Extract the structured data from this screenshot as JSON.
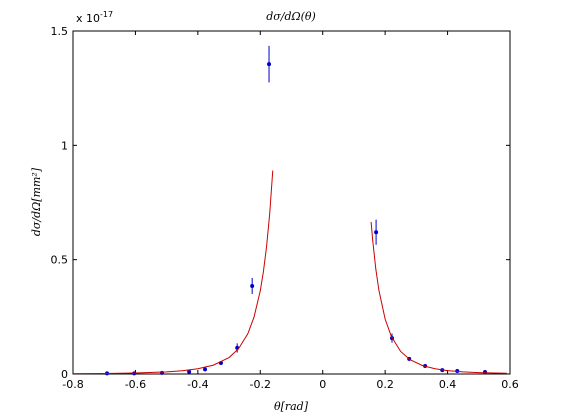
{
  "chart_data": {
    "type": "scatter",
    "title": "dσ/dΩ(θ)",
    "x_label": "θ[rad]",
    "y_label": "dσ/dΩ[mm²]",
    "multiplier": {
      "base": "x 10",
      "exponent": "-17"
    },
    "xlim": [
      -0.8,
      0.6
    ],
    "ylim": [
      0,
      1.5
    ],
    "xticks": [
      -0.8,
      -0.6,
      -0.4,
      -0.2,
      0,
      0.2,
      0.4,
      0.6
    ],
    "yticks": [
      0,
      0.5,
      1,
      1.5
    ],
    "grid": false,
    "series": [
      {
        "style": "errorbar",
        "color": "#0000cc",
        "x": [
          -0.691,
          -0.604,
          -0.515,
          -0.428,
          -0.377,
          -0.326,
          -0.274,
          -0.226,
          -0.172,
          0.171,
          0.222,
          0.277,
          0.328,
          0.383,
          0.431,
          0.52
        ],
        "values": [
          0.003,
          0.003,
          0.005,
          0.01,
          0.02,
          0.048,
          0.114,
          0.385,
          1.355,
          0.62,
          0.157,
          0.066,
          0.035,
          0.017,
          0.013,
          0.009
        ],
        "errors": [
          0.003,
          0.003,
          0.003,
          0.004,
          0.005,
          0.008,
          0.02,
          0.035,
          0.08,
          0.055,
          0.02,
          0.008,
          0.005,
          0.004,
          0.003,
          0.003
        ]
      },
      {
        "style": "line",
        "color": "#cc0000",
        "x": [
          -0.8,
          -0.7,
          -0.6,
          -0.5,
          -0.45,
          -0.4,
          -0.35,
          -0.3,
          -0.27,
          -0.24,
          -0.22,
          -0.2,
          -0.19,
          -0.18,
          -0.17,
          -0.16
        ],
        "values": [
          0.0014,
          0.0024,
          0.0045,
          0.0093,
          0.0142,
          0.0228,
          0.0389,
          0.072,
          0.11,
          0.176,
          0.249,
          0.364,
          0.448,
          0.556,
          0.698,
          0.89
        ]
      },
      {
        "style": "line",
        "color": "#cc0000",
        "x": [
          0.155,
          0.16,
          0.17,
          0.18,
          0.2,
          0.22,
          0.25,
          0.28,
          0.32,
          0.36,
          0.4,
          0.45,
          0.5,
          0.55,
          0.59
        ],
        "values": [
          0.665,
          0.586,
          0.46,
          0.366,
          0.24,
          0.164,
          0.098,
          0.0624,
          0.0366,
          0.0229,
          0.015,
          0.0094,
          0.0061,
          0.0042,
          0.0032
        ]
      }
    ]
  }
}
